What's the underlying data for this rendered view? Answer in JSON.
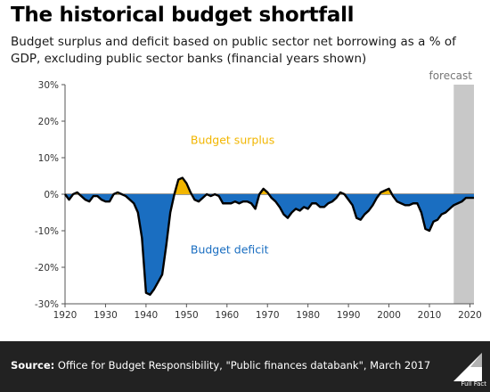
{
  "title": "The historical budget shortfall",
  "subtitle": "Budget surplus and deficit based on public sector net borrowing as a % of GDP, excluding public sector banks (financial years shown)",
  "footer": {
    "source_label": "Source:",
    "source_text": "Office for Budget Responsibility, \"Public finances databank\", March 2017",
    "logo_text": "Full Fact"
  },
  "colors": {
    "surplus": "#f2b600",
    "deficit": "#1a6ec1",
    "line": "#000000",
    "forecast_band": "#c8c8c8",
    "footer_bg": "#222222"
  },
  "chart_data": {
    "type": "area",
    "title": "",
    "xlabel": "",
    "ylabel": "",
    "xlim": [
      1920,
      2021
    ],
    "ylim": [
      -30,
      30
    ],
    "x_ticks": [
      1920,
      1930,
      1940,
      1950,
      1960,
      1970,
      1980,
      1990,
      2000,
      2010,
      2020
    ],
    "y_ticks": [
      30,
      20,
      10,
      0,
      -10,
      -20,
      -30
    ],
    "y_tick_labels": [
      "30%",
      "20%",
      "10%",
      "0%",
      "-10%",
      "-20%",
      "-30%"
    ],
    "grid": false,
    "annotations": {
      "forecast": {
        "label": "forecast",
        "x_start": 2016,
        "x_end": 2021
      },
      "surplus_label": {
        "text": "Budget surplus",
        "x": 1951,
        "y": 15
      },
      "deficit_label": {
        "text": "Budget deficit",
        "x": 1951,
        "y": -15
      }
    },
    "series": [
      {
        "x": [
          1920,
          1921,
          1922,
          1923,
          1924,
          1925,
          1926,
          1927,
          1928,
          1929,
          1930,
          1931,
          1932,
          1933,
          1934,
          1935,
          1936,
          1937,
          1938,
          1939,
          1940,
          1941,
          1942,
          1943,
          1944,
          1945,
          1946,
          1947,
          1948,
          1949,
          1950,
          1951,
          1952,
          1953,
          1954,
          1955,
          1956,
          1957,
          1958,
          1959,
          1960,
          1961,
          1962,
          1963,
          1964,
          1965,
          1966,
          1967,
          1968,
          1969,
          1970,
          1971,
          1972,
          1973,
          1974,
          1975,
          1976,
          1977,
          1978,
          1979,
          1980,
          1981,
          1982,
          1983,
          1984,
          1985,
          1986,
          1987,
          1988,
          1989,
          1990,
          1991,
          1992,
          1993,
          1994,
          1995,
          1996,
          1997,
          1998,
          1999,
          2000,
          2001,
          2002,
          2003,
          2004,
          2005,
          2006,
          2007,
          2008,
          2009,
          2010,
          2011,
          2012,
          2013,
          2014,
          2015,
          2016,
          2017,
          2018,
          2019,
          2020,
          2021
        ],
        "values": [
          0,
          -1.5,
          0,
          0.5,
          -0.5,
          -1.5,
          -2,
          -0.5,
          -0.5,
          -1.5,
          -2,
          -2,
          0,
          0.5,
          0,
          -0.5,
          -1.5,
          -2.5,
          -5,
          -12,
          -27,
          -27.5,
          -26,
          -24,
          -22,
          -14,
          -5,
          0,
          4,
          4.5,
          3,
          0.5,
          -1.5,
          -2,
          -1,
          0,
          -0.5,
          0,
          -0.5,
          -2.5,
          -2.5,
          -2.5,
          -2,
          -2.5,
          -2,
          -2,
          -2.5,
          -4,
          0,
          1.5,
          0.5,
          -1,
          -2,
          -3.5,
          -5.5,
          -6.5,
          -5,
          -4,
          -4.5,
          -3.5,
          -4,
          -2.5,
          -2.5,
          -3.5,
          -3.5,
          -2.5,
          -2,
          -1,
          0.5,
          0,
          -1.5,
          -3,
          -6.5,
          -7,
          -5.5,
          -4.5,
          -3,
          -1,
          0.5,
          1,
          1.5,
          -0.5,
          -2,
          -2.5,
          -3,
          -3,
          -2.5,
          -2.5,
          -5,
          -9.5,
          -10,
          -7.5,
          -7,
          -5.5,
          -5,
          -4,
          -3,
          -2.5,
          -2,
          -1,
          -1,
          -1
        ]
      }
    ]
  }
}
